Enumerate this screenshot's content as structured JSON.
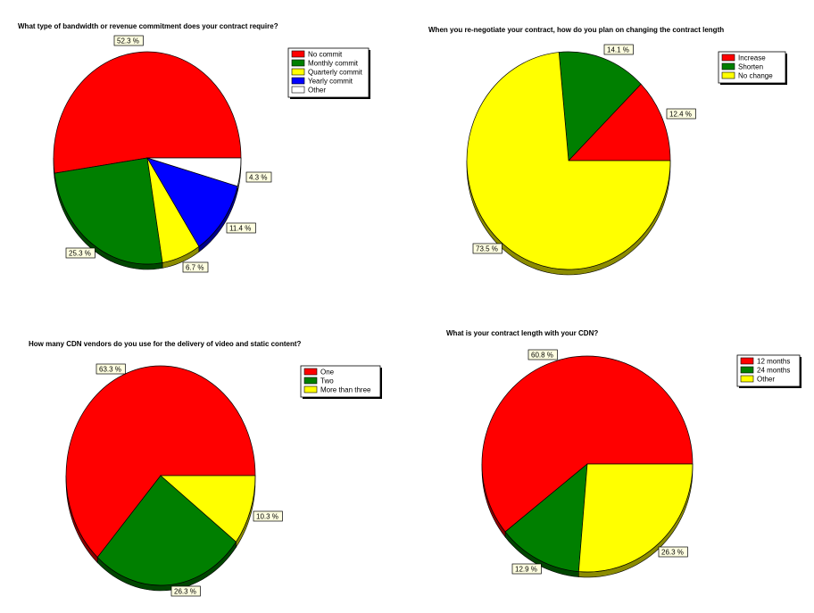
{
  "chart_data": [
    {
      "type": "pie",
      "title": "What type of bandwidth or revenue commitment does your contract require?",
      "categories": [
        "No commit",
        "Monthly commit",
        "Quarterly commit",
        "Yearly commit",
        "Other"
      ],
      "values": [
        52.3,
        25.3,
        6.7,
        11.4,
        4.3
      ],
      "value_labels": [
        "52.3 %",
        "25.3 %",
        "6.7 %",
        "11.4 %",
        "4.3 %"
      ],
      "colors": [
        "#ff0000",
        "#007f00",
        "#ffff00",
        "#0000ff",
        "#ffffff"
      ],
      "legend": "top-right"
    },
    {
      "type": "pie",
      "title": "When you re-negotiate your contract, how do you plan on changing the contract length",
      "categories": [
        "Increase",
        "Shorten",
        "No change"
      ],
      "values": [
        12.4,
        14.1,
        73.5
      ],
      "value_labels": [
        "12.4 %",
        "14.1 %",
        "73.5 %"
      ],
      "colors": [
        "#ff0000",
        "#007f00",
        "#ffff00"
      ],
      "legend": "top-right"
    },
    {
      "type": "pie",
      "title": "How many CDN vendors do you use for the delivery of video and static content?",
      "categories": [
        "One",
        "Two",
        "More than three"
      ],
      "values": [
        63.3,
        26.3,
        10.3
      ],
      "value_labels": [
        "63.3 %",
        "26.3 %",
        "10.3 %"
      ],
      "colors": [
        "#ff0000",
        "#007f00",
        "#ffff00"
      ],
      "legend": "top-right"
    },
    {
      "type": "pie",
      "title": "What is your contract length with your CDN?",
      "categories": [
        "12 months",
        "24 months",
        "Other"
      ],
      "values": [
        60.8,
        12.9,
        26.3
      ],
      "value_labels": [
        "60.8 %",
        "12.9 %",
        "26.3 %"
      ],
      "colors": [
        "#ff0000",
        "#007f00",
        "#ffff00"
      ],
      "legend": "top-right"
    }
  ]
}
